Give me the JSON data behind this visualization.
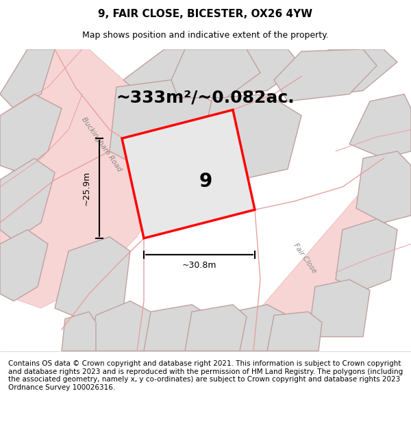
{
  "title": "9, FAIR CLOSE, BICESTER, OX26 4YW",
  "subtitle": "Map shows position and indicative extent of the property.",
  "area_label": "~333m²/~0.082ac.",
  "plot_number": "9",
  "width_label": "~30.8m",
  "height_label": "~25.9m",
  "bg_color": "#f0f0f0",
  "map_bg": "#e8e8e8",
  "road_color": "#f5c0c0",
  "building_color": "#d8d8d8",
  "building_edge": "#c0a0a0",
  "highlight_color": "#ff0000",
  "highlight_fill": "#e8e8e8",
  "footer_text": "Contains OS data © Crown copyright and database right 2021. This information is subject to Crown copyright and database rights 2023 and is reproduced with the permission of HM Land Registry. The polygons (including the associated geometry, namely x, y co-ordinates) are subject to Crown copyright and database rights 2023 Ordnance Survey 100026316.",
  "title_fontsize": 11,
  "subtitle_fontsize": 9,
  "footer_fontsize": 7.5,
  "area_fontsize": 18,
  "plot_num_fontsize": 20
}
